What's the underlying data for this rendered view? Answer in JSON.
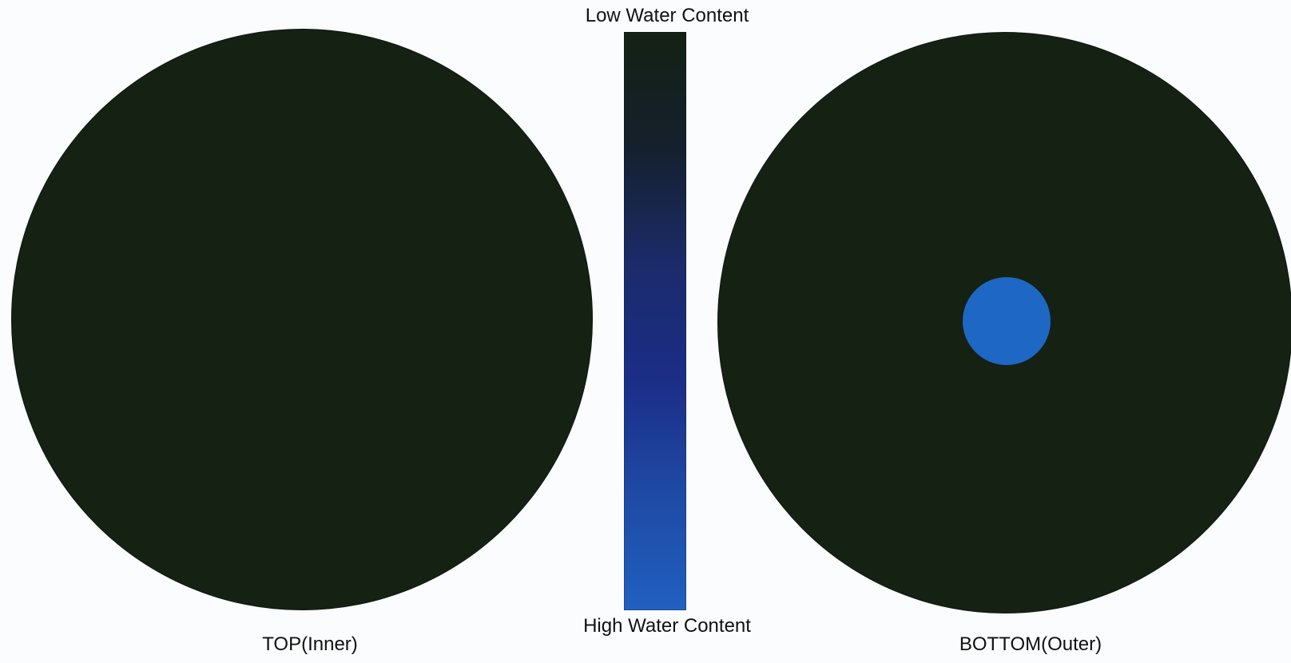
{
  "legend": {
    "low_label": "Low Water Content",
    "high_label": "High Water Content",
    "gradient_colors": [
      "#142113",
      "#15202d",
      "#1b2b6a",
      "#1b2d87",
      "#1f4aa5",
      "#2160c0"
    ]
  },
  "panels": [
    {
      "caption": "TOP(Inner)",
      "fill_color": "#142113"
    },
    {
      "caption": "BOTTOM(Outer)",
      "fill_color": "#142113",
      "spot_color": "#1f67c4"
    }
  ]
}
